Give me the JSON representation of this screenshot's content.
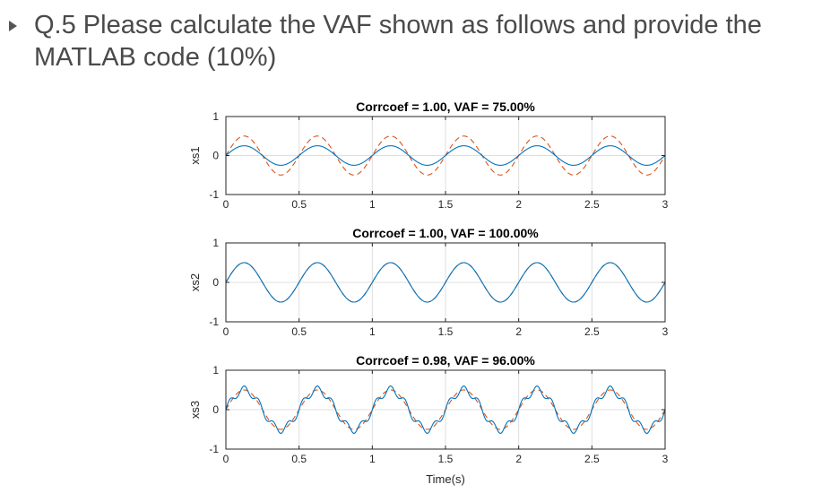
{
  "slide": {
    "question": "Q.5 Please calculate the VAF shown as follows and provide the MATLAB code (10%)"
  },
  "colors": {
    "reference_line": "#d95319",
    "output_line": "#0072bd",
    "axes": "#262626",
    "grid": "#dfdfdf"
  },
  "chart_data": [
    {
      "type": "line",
      "title": "Corrcoef = 1.00,   VAF = 75.00%",
      "ylabel": "xs1",
      "xlim": [
        0,
        3
      ],
      "ylim": [
        -1,
        1
      ],
      "xticks": [
        "0",
        "0.5",
        "1",
        "1.5",
        "2",
        "2.5",
        "3"
      ],
      "yticks": [
        "-1",
        "0",
        "1"
      ],
      "grid": true,
      "series": [
        {
          "style": "dashed",
          "color": "#d95319",
          "function": "0.5*sin(2*pi*2*t)",
          "amplitude": 0.5,
          "frequency_hz": 2
        },
        {
          "style": "solid",
          "color": "#0072bd",
          "function": "0.25*sin(2*pi*2*t)",
          "amplitude": 0.25,
          "frequency_hz": 2
        }
      ]
    },
    {
      "type": "line",
      "title": "Corrcoef = 1.00,   VAF = 100.00%",
      "ylabel": "xs2",
      "xlim": [
        0,
        3
      ],
      "ylim": [
        -1,
        1
      ],
      "xticks": [
        "0",
        "0.5",
        "1",
        "1.5",
        "2",
        "2.5",
        "3"
      ],
      "yticks": [
        "-1",
        "0",
        "1"
      ],
      "grid": true,
      "series": [
        {
          "style": "dashed",
          "color": "#d95319",
          "function": "0.5*sin(2*pi*2*t)",
          "amplitude": 0.5,
          "frequency_hz": 2
        },
        {
          "style": "solid",
          "color": "#0072bd",
          "function": "0.5*sin(2*pi*2*t)",
          "amplitude": 0.5,
          "frequency_hz": 2
        }
      ]
    },
    {
      "type": "line",
      "title": "Corrcoef = 0.98,   VAF = 96.00%",
      "ylabel": "xs3",
      "xlabel": "Time(s)",
      "xlim": [
        0,
        3
      ],
      "ylim": [
        -1,
        1
      ],
      "xticks": [
        "0",
        "0.5",
        "1",
        "1.5",
        "2",
        "2.5",
        "3"
      ],
      "yticks": [
        "-1",
        "0",
        "1"
      ],
      "grid": true,
      "series": [
        {
          "style": "dashed",
          "color": "#d95319",
          "function": "0.5*sin(2*pi*2*t)",
          "amplitude": 0.5,
          "frequency_hz": 2
        },
        {
          "style": "solid",
          "color": "#0072bd",
          "function": "0.5*sin(2*pi*2*t) + 0.1*sin(2*pi*10*t)",
          "amplitude": 0.5,
          "frequency_hz": 2,
          "harmonic_amplitude": 0.1,
          "harmonic_frequency_hz": 10
        }
      ]
    }
  ]
}
